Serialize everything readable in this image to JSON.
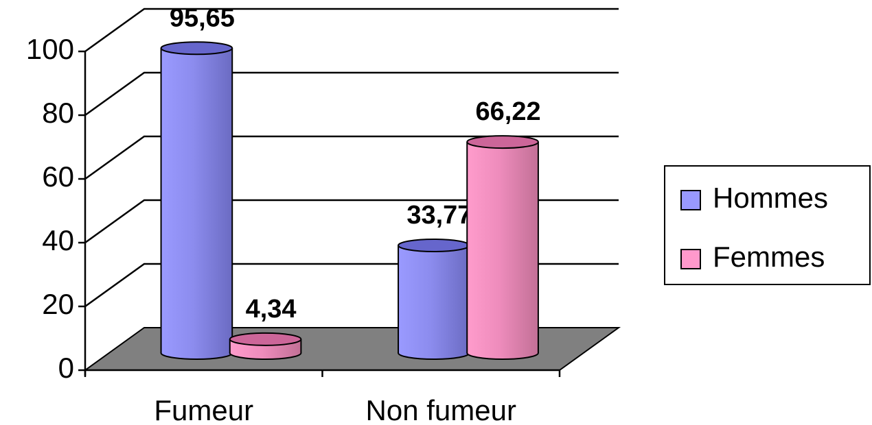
{
  "chart_data": {
    "type": "bar3d",
    "categories": [
      "Fumeur",
      "Non fumeur"
    ],
    "series": [
      {
        "name": "Hommes",
        "color": "#9999ff",
        "values": [
          95.65,
          33.77
        ],
        "value_labels": [
          "95,65",
          "33,77"
        ]
      },
      {
        "name": "Femmes",
        "color": "#ff99cc",
        "values": [
          4.34,
          66.22
        ],
        "value_labels": [
          "4,34",
          "66,22"
        ]
      }
    ],
    "ylim": [
      0,
      100
    ],
    "yticks": [
      0,
      20,
      40,
      60,
      80,
      100
    ],
    "grid": true,
    "legend": "right"
  }
}
